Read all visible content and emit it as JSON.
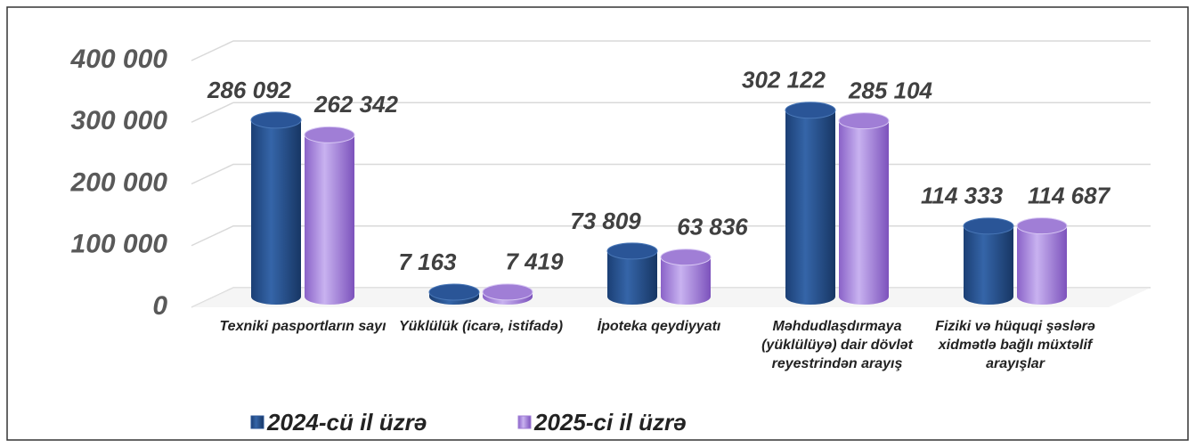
{
  "chart_data": {
    "type": "bar3d",
    "categories": [
      "Texniki pasportların sayı",
      "Yüklülük (icarə, istifadə)",
      "İpoteka qeydiyyatı",
      "Məhdudlaşdırmaya (yüklülüyə) dair dövlət reyestrindən arayış",
      "Fiziki və hüquqi şəslərə xidmətlə bağlı müxtəlif arayışlar"
    ],
    "series": [
      {
        "name": "2024-cü il üzrə",
        "color": "#2a5597",
        "values": [
          286092,
          7163,
          73809,
          302122,
          114333
        ],
        "value_labels": [
          "286 092",
          "7 163",
          "73 809",
          "302 122",
          "114 333"
        ]
      },
      {
        "name": "2025-ci il üzrə",
        "color": "#a07ed6",
        "values": [
          262342,
          7419,
          63836,
          285104,
          114687
        ],
        "value_labels": [
          "262 342",
          "7 419",
          "63 836",
          "285 104",
          "114 687"
        ]
      }
    ],
    "ylim": [
      0,
      400000
    ],
    "yticks": [
      0,
      {
        "value": 100000,
        "label": "100 000"
      },
      {
        "value": 200000,
        "label": "200 000"
      },
      {
        "value": 300000,
        "label": "300 000"
      },
      {
        "value": 400000,
        "label": "400 000"
      }
    ],
    "grid": true,
    "legend": "bottom"
  }
}
